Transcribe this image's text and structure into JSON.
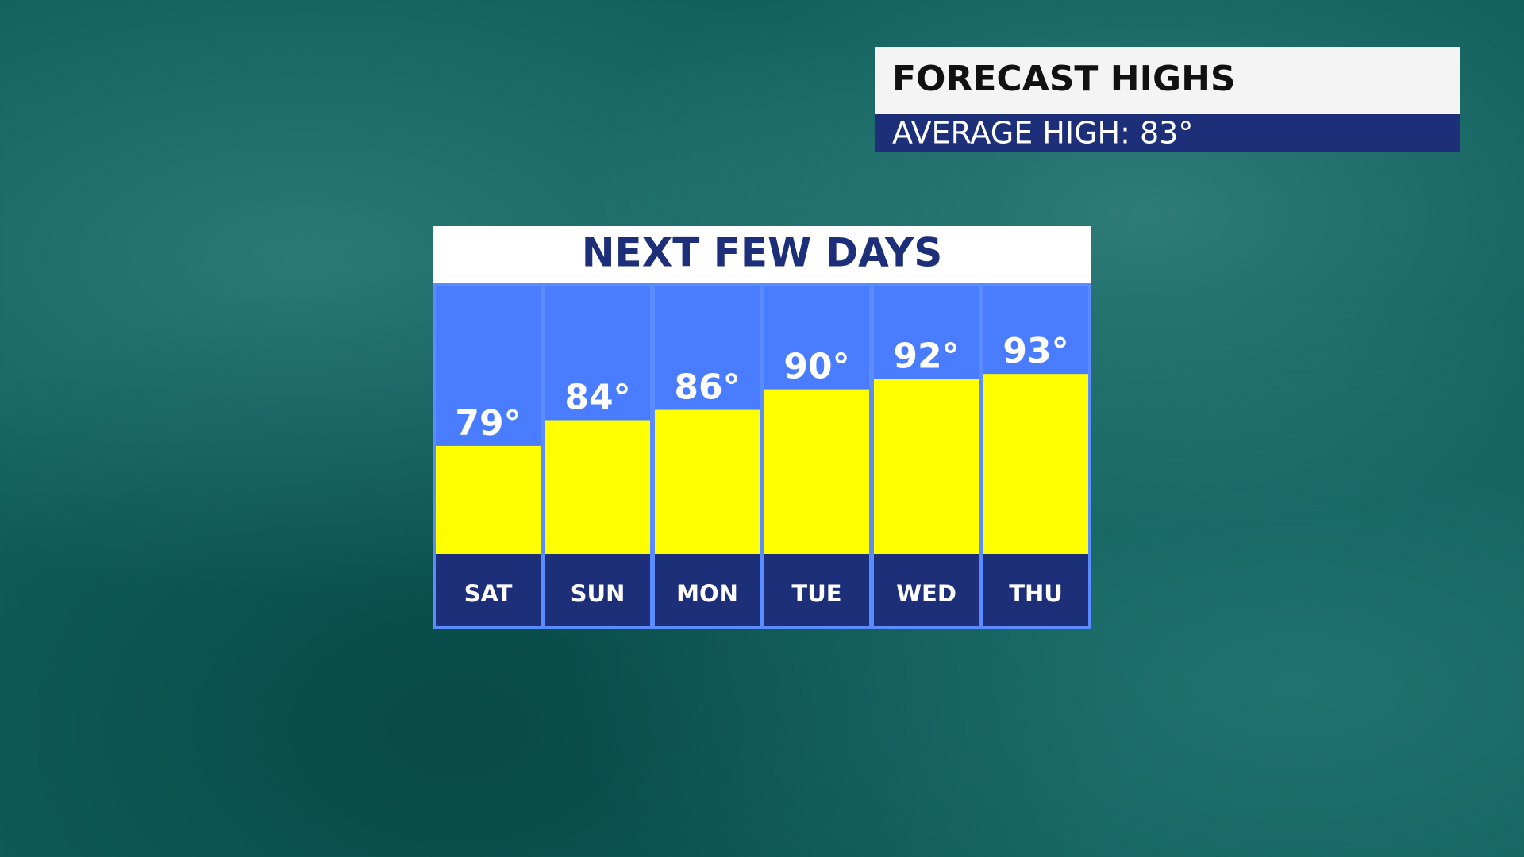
{
  "header": {
    "title": "FORECAST HIGHS",
    "subtitle": "AVERAGE HIGH: 83°"
  },
  "chart_data": {
    "type": "bar",
    "title": "NEXT FEW DAYS",
    "categories": [
      "SAT",
      "SUN",
      "MON",
      "TUE",
      "WED",
      "THU"
    ],
    "values": [
      79,
      84,
      86,
      90,
      92,
      93
    ],
    "value_labels": [
      "79°",
      "84°",
      "86°",
      "90°",
      "92°",
      "93°"
    ],
    "color": "#ffff00",
    "ylim": [
      58,
      110
    ]
  }
}
